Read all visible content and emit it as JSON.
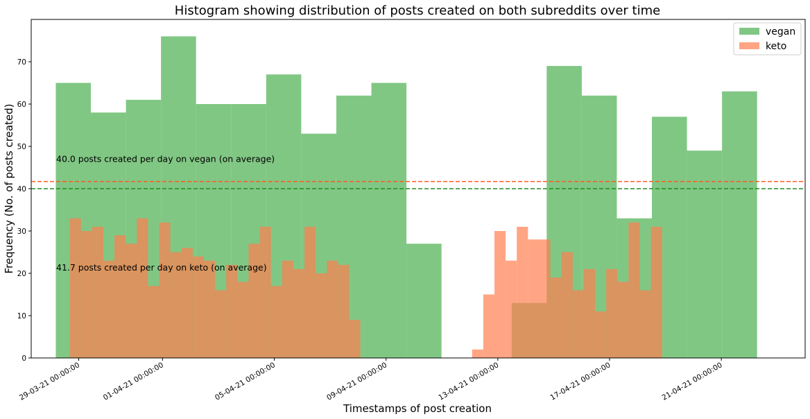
{
  "chart_data": {
    "type": "bar",
    "title": "Histogram showing distribution of posts created on both subreddits over time",
    "xlabel": "Timestamps of post creation",
    "ylabel": "Frequency (No. of posts created)",
    "ylim": [
      0,
      80
    ],
    "yticks": [
      0,
      10,
      20,
      30,
      40,
      50,
      60,
      70
    ],
    "xlim_days": [
      -1.7,
      26.0
    ],
    "xticks": [
      {
        "day": 0,
        "label": "29-03-21 00:00:00"
      },
      {
        "day": 3,
        "label": "01-04-21 00:00:00"
      },
      {
        "day": 7,
        "label": "05-04-21 00:00:00"
      },
      {
        "day": 11,
        "label": "09-04-21 00:00:00"
      },
      {
        "day": 15,
        "label": "13-04-21 00:00:00"
      },
      {
        "day": 19,
        "label": "17-04-21 00:00:00"
      },
      {
        "day": 23,
        "label": "21-04-21 00:00:00"
      }
    ],
    "grid": false,
    "legend_position": "top-right",
    "series": [
      {
        "name": "vegan",
        "color": "#4caf50",
        "opacity": 0.7,
        "bins_start_day": -0.82,
        "bin_width_days": 1.255,
        "values": [
          65,
          58,
          61,
          76,
          60,
          60,
          67,
          53,
          62,
          65,
          27,
          0,
          0,
          13,
          69,
          62,
          33,
          57,
          49,
          63
        ]
      },
      {
        "name": "keto",
        "color": "#ff7f50",
        "opacity": 0.7,
        "bins_start_day": -0.32,
        "bin_width_days": 0.4,
        "values": [
          33,
          30,
          31,
          23,
          29,
          27,
          33,
          17,
          32,
          25,
          26,
          24,
          23,
          16,
          22,
          18,
          27,
          31,
          17,
          23,
          21,
          31,
          20,
          23,
          22,
          9,
          0,
          0,
          0,
          0,
          0,
          0,
          0,
          0,
          0,
          0,
          2,
          15,
          30,
          23,
          31,
          28,
          28,
          19,
          25,
          16,
          21,
          11,
          21,
          18,
          32,
          16,
          31
        ]
      }
    ],
    "reference_lines": [
      {
        "y": 40.0,
        "color": "#228b22",
        "style": "dashed"
      },
      {
        "y": 41.7,
        "color": "#ff5a1f",
        "style": "dashed"
      }
    ],
    "annotations": [
      {
        "text": "40.0 posts created per day on vegan (on average)",
        "y": 47
      },
      {
        "text": "41.7 posts created per day on keto (on average)",
        "y": 21.3
      }
    ]
  }
}
